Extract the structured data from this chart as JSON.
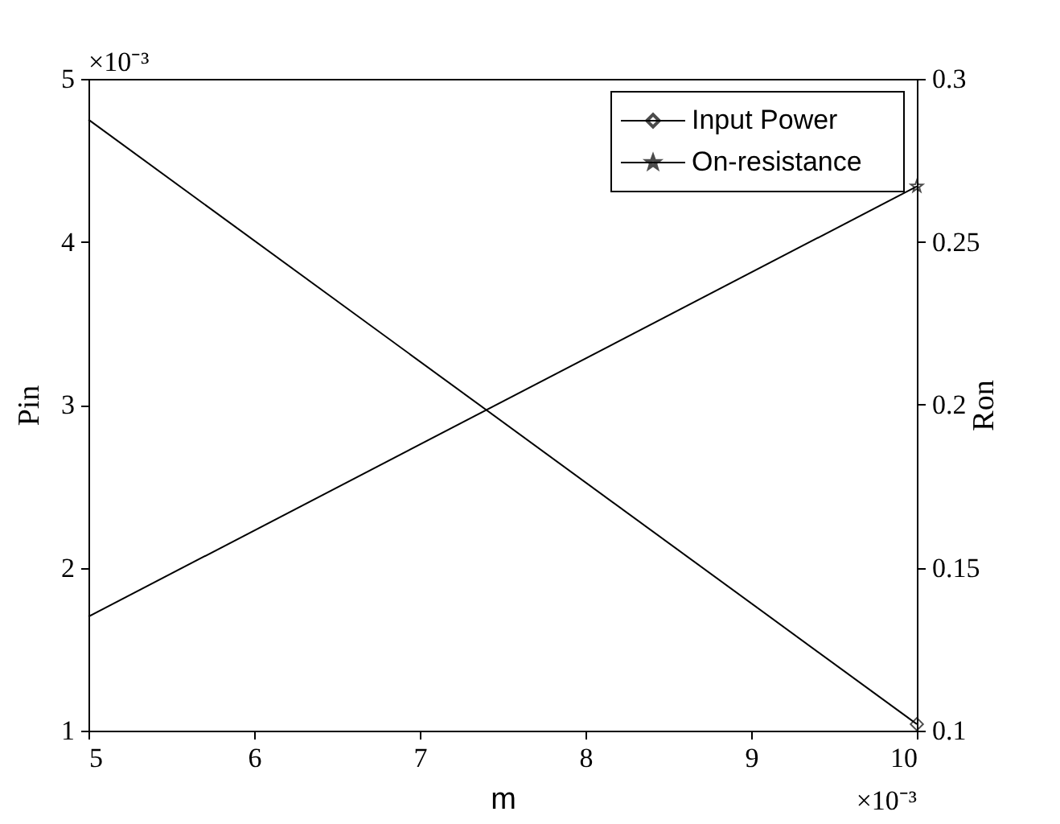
{
  "chart_data": {
    "type": "line",
    "xlabel": "m",
    "ylabel": "Pin",
    "y2label": "Ron",
    "x": [
      5,
      10
    ],
    "series": [
      {
        "name": "Input Power",
        "color": "#000000",
        "values": [
          4.75,
          1.04
        ],
        "marker": "diamond"
      },
      {
        "name": "On-resistance",
        "color": "#000000",
        "values": [
          0.135,
          0.267
        ],
        "axis": "y2",
        "marker": "star"
      }
    ],
    "xlim": [
      5,
      10
    ],
    "xticks": [
      5,
      6,
      7,
      8,
      9,
      10
    ],
    "ylim": [
      1,
      5
    ],
    "yticks": [
      1,
      2,
      3,
      4,
      5
    ],
    "y2lim": [
      0.1,
      0.3
    ],
    "y2ticks": [
      0.1,
      0.15,
      0.2,
      0.25,
      0.3
    ],
    "annotations": [
      "×10⁻³",
      "×10⁻³"
    ],
    "legend": "top right",
    "line_style": "solid"
  }
}
